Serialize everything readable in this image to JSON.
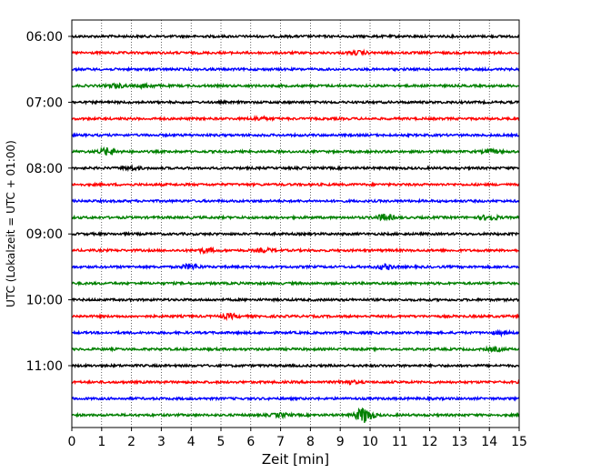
{
  "chart_data": {
    "type": "line",
    "subtype": "helicorder",
    "xlabel": "Zeit  [min]",
    "ylabel": "UTC (Lokalzeit = UTC + 01:00)",
    "xlim": [
      0,
      15
    ],
    "x_ticks": [
      "0",
      "1",
      "2",
      "3",
      "4",
      "5",
      "6",
      "7",
      "8",
      "9",
      "10",
      "11",
      "12",
      "13",
      "14",
      "15"
    ],
    "y_ticks": [
      "06:00",
      "07:00",
      "08:00",
      "09:00",
      "10:00",
      "11:00"
    ],
    "trace_minutes": 15,
    "grid": "vertical dotted lines at each minute",
    "color_cycle": [
      "#000000",
      "#ff0000",
      "#0000ff",
      "#008000"
    ],
    "traces": [
      {
        "start": "06:00",
        "color": "#000000",
        "events": []
      },
      {
        "start": "06:15",
        "color": "#ff0000",
        "events": [
          {
            "minute": 9.6,
            "amplitude": 1.5
          }
        ]
      },
      {
        "start": "06:30",
        "color": "#0000ff",
        "events": []
      },
      {
        "start": "06:45",
        "color": "#008000",
        "events": [
          {
            "minute": 1.5,
            "amplitude": 1.8
          },
          {
            "minute": 2.5,
            "amplitude": 1.5
          }
        ]
      },
      {
        "start": "07:00",
        "color": "#000000",
        "events": []
      },
      {
        "start": "07:15",
        "color": "#ff0000",
        "events": [
          {
            "minute": 6.3,
            "amplitude": 1.5
          }
        ]
      },
      {
        "start": "07:30",
        "color": "#0000ff",
        "events": []
      },
      {
        "start": "07:45",
        "color": "#008000",
        "events": [
          {
            "minute": 1.2,
            "amplitude": 3.5
          },
          {
            "minute": 14.1,
            "amplitude": 1.5
          }
        ]
      },
      {
        "start": "08:00",
        "color": "#000000",
        "events": [
          {
            "minute": 2.0,
            "amplitude": 1.5
          }
        ]
      },
      {
        "start": "08:15",
        "color": "#ff0000",
        "events": []
      },
      {
        "start": "08:30",
        "color": "#0000ff",
        "events": []
      },
      {
        "start": "08:45",
        "color": "#008000",
        "events": [
          {
            "minute": 10.5,
            "amplitude": 3.0
          },
          {
            "minute": 14.0,
            "amplitude": 2.5
          }
        ]
      },
      {
        "start": "09:00",
        "color": "#000000",
        "events": []
      },
      {
        "start": "09:15",
        "color": "#ff0000",
        "events": [
          {
            "minute": 4.5,
            "amplitude": 1.8
          },
          {
            "minute": 6.5,
            "amplitude": 1.5
          }
        ]
      },
      {
        "start": "09:30",
        "color": "#0000ff",
        "events": [
          {
            "minute": 4.0,
            "amplitude": 2.5
          },
          {
            "minute": 10.5,
            "amplitude": 2.2
          }
        ]
      },
      {
        "start": "09:45",
        "color": "#008000",
        "events": []
      },
      {
        "start": "10:00",
        "color": "#000000",
        "events": []
      },
      {
        "start": "10:15",
        "color": "#ff0000",
        "events": [
          {
            "minute": 5.3,
            "amplitude": 2.0
          }
        ]
      },
      {
        "start": "10:30",
        "color": "#0000ff",
        "events": [
          {
            "minute": 14.4,
            "amplitude": 1.5
          }
        ]
      },
      {
        "start": "10:45",
        "color": "#008000",
        "events": [
          {
            "minute": 14.2,
            "amplitude": 1.5
          }
        ]
      },
      {
        "start": "11:00",
        "color": "#000000",
        "events": []
      },
      {
        "start": "11:15",
        "color": "#ff0000",
        "events": [
          {
            "minute": 9.3,
            "amplitude": 1.5
          }
        ]
      },
      {
        "start": "11:30",
        "color": "#0000ff",
        "events": []
      },
      {
        "start": "11:45",
        "color": "#008000",
        "events": [
          {
            "minute": 7.0,
            "amplitude": 1.8
          },
          {
            "minute": 9.8,
            "amplitude": 8.0
          }
        ]
      }
    ]
  }
}
